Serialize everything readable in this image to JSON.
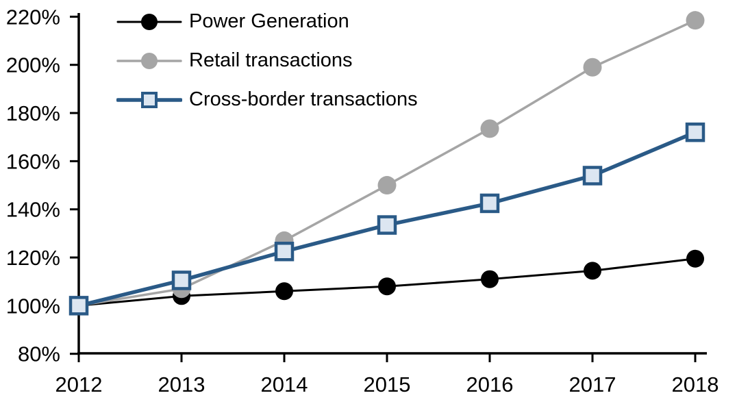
{
  "chart_data": {
    "type": "line",
    "title": "",
    "xlabel": "",
    "ylabel": "",
    "background": "#FFFFFF",
    "grid": false,
    "legend_position": "top-left-inside",
    "x": [
      2012,
      2013,
      2014,
      2015,
      2016,
      2017,
      2018
    ],
    "x_tick_labels": [
      "2012",
      "2013",
      "2014",
      "2015",
      "2016",
      "2017",
      "2018"
    ],
    "y_axis": {
      "min": 80,
      "max": 220,
      "step": 20,
      "suffix": "%"
    },
    "y_tick_labels": [
      "80%",
      "100%",
      "120%",
      "140%",
      "160%",
      "180%",
      "200%",
      "220%"
    ],
    "axis_color": "#000000",
    "series": [
      {
        "name": "Power Generation",
        "color": "#000000",
        "marker": "circle",
        "marker_fill": "#000000",
        "marker_size": 13,
        "line_width": 3,
        "values": [
          100,
          104,
          106,
          108,
          111,
          114.5,
          119.5
        ]
      },
      {
        "name": "Retail transactions",
        "color": "#A5A5A5",
        "marker": "circle",
        "marker_fill": "#A5A5A5",
        "marker_size": 13.5,
        "line_width": 3.5,
        "values": [
          100,
          107,
          127,
          150,
          173.5,
          199,
          218.5
        ]
      },
      {
        "name": "Cross-border transactions",
        "color": "#2A5A87",
        "marker": "square",
        "marker_fill": "#DCE6F1",
        "marker_size": 24,
        "marker_border_width": 4.5,
        "line_width": 5.5,
        "values": [
          100,
          110.5,
          122.5,
          133.5,
          142.5,
          154,
          172
        ]
      }
    ]
  }
}
